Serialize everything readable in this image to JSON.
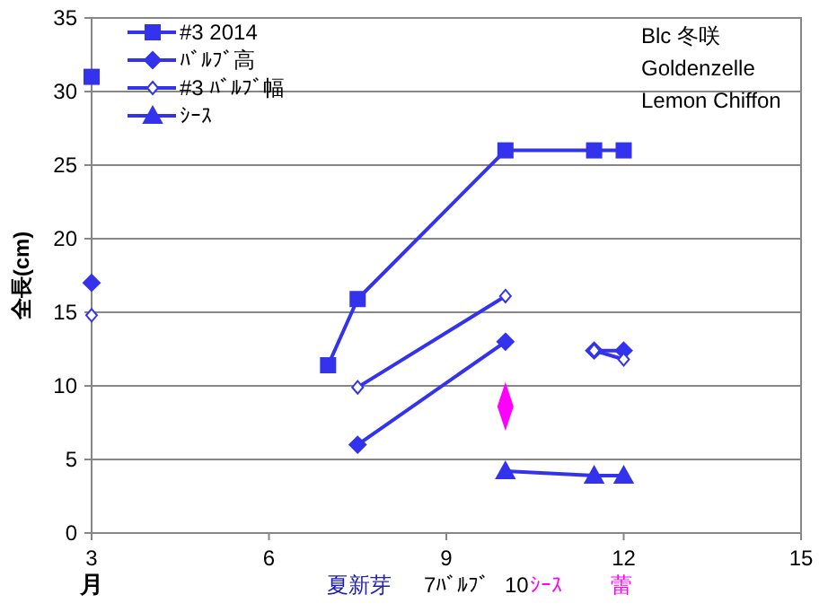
{
  "chart_data": {
    "type": "line",
    "ylabel": "全長(cm)",
    "xlabel": "月",
    "xlim": [
      3,
      15
    ],
    "xticks": [
      3,
      6,
      9,
      12,
      15
    ],
    "ylim": [
      0,
      35
    ],
    "yticks": [
      0,
      5,
      10,
      15,
      20,
      25,
      30,
      35
    ],
    "grid": "y",
    "legend": "top left",
    "line_style": "solid",
    "series": [
      {
        "name": "#3 2014",
        "color": "#3333ee",
        "marker": "square",
        "x": [
          3,
          5,
          7,
          7.5,
          10,
          11.5,
          12
        ],
        "values": [
          31,
          null,
          11.4,
          15.9,
          26,
          26,
          26
        ]
      },
      {
        "name": "ﾊﾞﾙﾌﾞ高",
        "color": "#3333ee",
        "marker": "diamond",
        "x": [
          3,
          5,
          7.5,
          10,
          11,
          11.5,
          12
        ],
        "values": [
          17,
          null,
          6,
          13,
          null,
          12.4,
          12.4
        ]
      },
      {
        "name": "#3 ﾊﾞﾙﾌﾞ幅",
        "color": "#3333ee",
        "marker": "diamond",
        "x": [
          3,
          5,
          7.5,
          10,
          11,
          11.5,
          12
        ],
        "values": [
          14.8,
          null,
          9.9,
          16.1,
          null,
          12.4,
          11.8
        ]
      },
      {
        "name": "ｼｰｽ",
        "color": "#3333ee",
        "marker": "triangle",
        "x": [
          10,
          11.5,
          12
        ],
        "values": [
          4.2,
          3.9,
          3.9
        ]
      },
      {
        "type": "scatter",
        "color": "#ff00ff",
        "marker": "diamond",
        "x": [
          10
        ],
        "values": [
          8.6
        ]
      }
    ],
    "annotations": [
      "Blc  冬咲",
      "Goldenzelle",
      "Lemon Chiffon",
      "夏新芽",
      "7ﾊﾞﾙﾌﾞ",
      "10",
      "ｼｰｽ",
      "蕾"
    ]
  }
}
